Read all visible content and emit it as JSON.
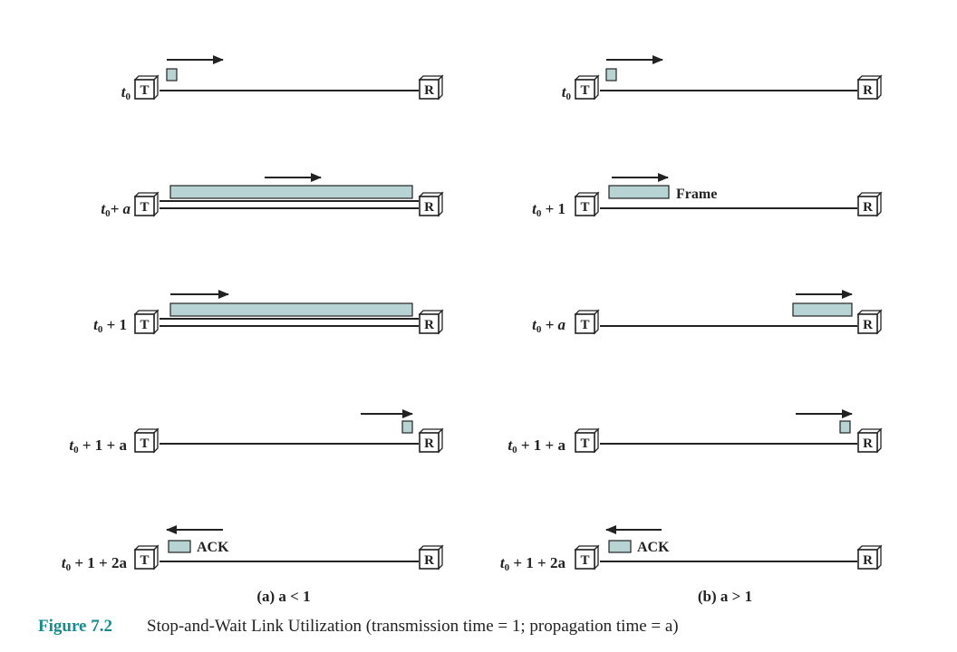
{
  "colors": {
    "frame_fill": "#b7d3d3",
    "line": "#222222",
    "caption_accent": "#1a8a8a"
  },
  "box_labels": {
    "transmitter": "T",
    "receiver": "R"
  },
  "panels": [
    {
      "caption": "(a) a < 1",
      "rows": [
        {
          "time": "t",
          "sub": "0",
          "suffix": ""
        },
        {
          "time": "t",
          "sub": "0",
          "suffix": "+ a"
        },
        {
          "time": "t",
          "sub": "0",
          "suffix": " + 1"
        },
        {
          "time": "t",
          "sub": "0",
          "suffix": " + 1 + a"
        },
        {
          "time": "t",
          "sub": "0",
          "suffix": " + 1 + 2a",
          "label": "ACK"
        }
      ]
    },
    {
      "caption": "(b) a > 1",
      "rows": [
        {
          "time": "t",
          "sub": "0",
          "suffix": ""
        },
        {
          "time": "t",
          "sub": "0",
          "suffix": " + 1",
          "label": "Frame"
        },
        {
          "time": "t",
          "sub": "0",
          "suffix": " + a"
        },
        {
          "time": "t",
          "sub": "0",
          "suffix": " + 1 + a"
        },
        {
          "time": "t",
          "sub": "0",
          "suffix": " + 1 + 2a",
          "label": "ACK"
        }
      ]
    }
  ],
  "figure": {
    "number": "Figure 7.2",
    "caption": "Stop-and-Wait Link Utilization (transmission time = 1; propagation time = a)"
  }
}
